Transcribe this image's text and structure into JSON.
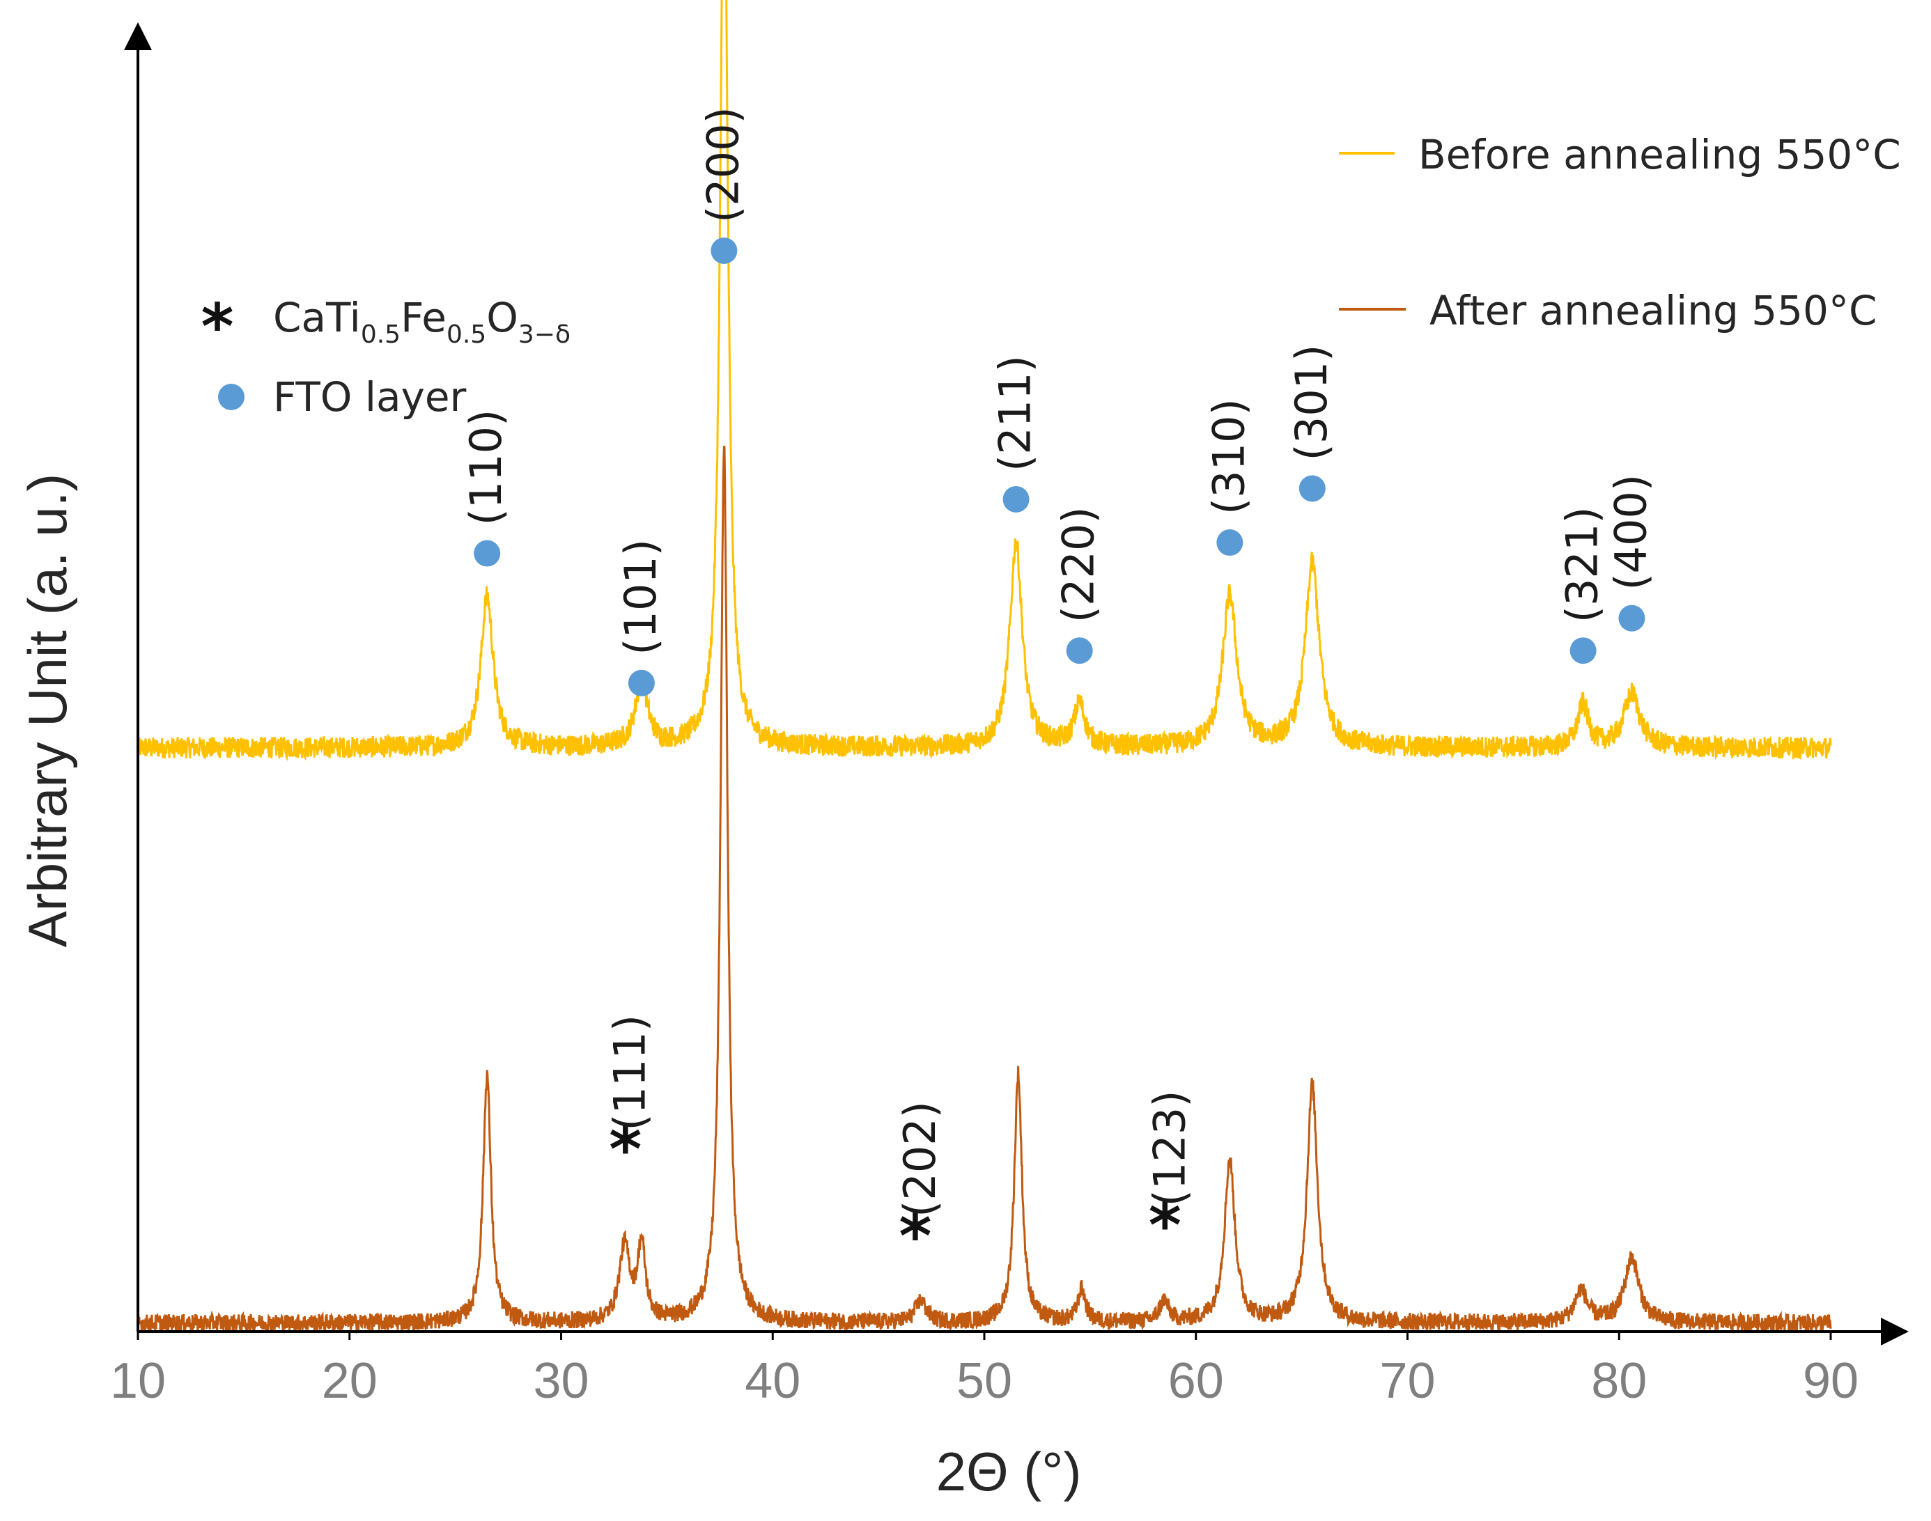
{
  "chart_data": {
    "type": "line",
    "title": "",
    "xlabel": "2Θ (°)",
    "ylabel": "Arbitrary Unit (a. u.)",
    "xlim": [
      10,
      90
    ],
    "ylim": [
      0,
      1.0
    ],
    "xticks": [
      "10",
      "20",
      "30",
      "40",
      "50",
      "60",
      "70",
      "80",
      "90"
    ],
    "grid": false,
    "legend_position": "top-right",
    "series": [
      {
        "name": "Before annealing 550°C",
        "color": "#ffc000",
        "baseline": 0.54,
        "noise": 0.01,
        "peaks": [
          {
            "x": 26.5,
            "height": 0.14,
            "width": 0.35
          },
          {
            "x": 33.8,
            "height": 0.06,
            "width": 0.35
          },
          {
            "x": 37.7,
            "height": 0.86,
            "width": 0.22
          },
          {
            "x": 51.5,
            "height": 0.19,
            "width": 0.35
          },
          {
            "x": 54.5,
            "height": 0.04,
            "width": 0.3
          },
          {
            "x": 61.6,
            "height": 0.14,
            "width": 0.4
          },
          {
            "x": 65.5,
            "height": 0.17,
            "width": 0.4
          },
          {
            "x": 78.3,
            "height": 0.04,
            "width": 0.3
          },
          {
            "x": 80.6,
            "height": 0.05,
            "width": 0.45
          }
        ]
      },
      {
        "name": "After annealing 550°C",
        "color": "#c05a11",
        "baseline": 0.008,
        "noise": 0.008,
        "peaks": [
          {
            "x": 26.5,
            "height": 0.23,
            "width": 0.22
          },
          {
            "x": 33.0,
            "height": 0.07,
            "width": 0.3
          },
          {
            "x": 33.8,
            "height": 0.07,
            "width": 0.22
          },
          {
            "x": 37.7,
            "height": 0.81,
            "width": 0.2
          },
          {
            "x": 47.0,
            "height": 0.02,
            "width": 0.3
          },
          {
            "x": 51.6,
            "height": 0.23,
            "width": 0.22
          },
          {
            "x": 54.6,
            "height": 0.03,
            "width": 0.22
          },
          {
            "x": 58.5,
            "height": 0.02,
            "width": 0.25
          },
          {
            "x": 61.6,
            "height": 0.15,
            "width": 0.3
          },
          {
            "x": 65.5,
            "height": 0.22,
            "width": 0.3
          },
          {
            "x": 78.2,
            "height": 0.03,
            "width": 0.35
          },
          {
            "x": 80.6,
            "height": 0.06,
            "width": 0.4
          }
        ]
      }
    ],
    "legend_markers": {
      "star_label_main": "CaTi",
      "star_sub1": "0.5",
      "star_main2": "Fe",
      "star_sub2": "0.5",
      "star_main3": "O",
      "star_sub3": "3−δ",
      "dot_label": "FTO layer",
      "dot_color": "#5b9bd5"
    },
    "annotations_before": [
      {
        "label": "(110)",
        "x": 26.5,
        "y": 0.72
      },
      {
        "label": "(101)",
        "x": 33.8,
        "y": 0.6
      },
      {
        "label": "(200)",
        "x": 37.7,
        "y": 1.0
      },
      {
        "label": "(211)",
        "x": 51.5,
        "y": 0.77
      },
      {
        "label": "(220)",
        "x": 54.5,
        "y": 0.63
      },
      {
        "label": "(310)",
        "x": 61.6,
        "y": 0.73
      },
      {
        "label": "(301)",
        "x": 65.5,
        "y": 0.78
      },
      {
        "label": "(321)",
        "x": 78.3,
        "y": 0.63
      },
      {
        "label": "(400)",
        "x": 80.6,
        "y": 0.66
      }
    ],
    "annotations_after": [
      {
        "label": "(111)",
        "x": 33.3,
        "y": 0.16
      },
      {
        "label": "(202)",
        "x": 47.0,
        "y": 0.08
      },
      {
        "label": "(123)",
        "x": 58.8,
        "y": 0.09
      }
    ],
    "dot_marker_y_offset": 0.035,
    "star_glyph": "*"
  }
}
